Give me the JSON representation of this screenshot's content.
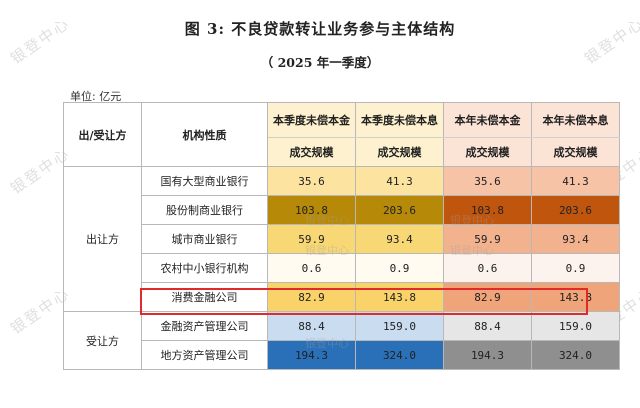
{
  "title": "图 3:  不良贷款转让业务参与主体结构",
  "subtitle": "（ 2025 年一季度）",
  "unit": "单位:  亿元",
  "watermark": "银登中心",
  "table": {
    "header": {
      "party": "出/受让方",
      "institution": "机构性质",
      "cols": [
        "本季度未偿本金",
        "本季度未偿本息",
        "本年未偿本金",
        "本年未偿本息"
      ],
      "sub": "成交规模"
    },
    "groups": [
      {
        "label": "出让方",
        "rows": [
          {
            "name": "国有大型商业银行",
            "values": [
              "35.6",
              "41.3",
              "35.6",
              "41.3"
            ]
          },
          {
            "name": "股份制商业银行",
            "values": [
              "103.8",
              "203.6",
              "103.8",
              "203.6"
            ]
          },
          {
            "name": "城市商业银行",
            "values": [
              "59.9",
              "93.4",
              "59.9",
              "93.4"
            ]
          },
          {
            "name": "农村中小银行机构",
            "values": [
              "0.6",
              "0.9",
              "0.6",
              "0.9"
            ]
          },
          {
            "name": "消费金融公司",
            "values": [
              "82.9",
              "143.8",
              "82.9",
              "143.8"
            ]
          }
        ]
      },
      {
        "label": "受让方",
        "rows": [
          {
            "name": "金融资产管理公司",
            "values": [
              "88.4",
              "159.0",
              "88.4",
              "159.0"
            ]
          },
          {
            "name": "地方资产管理公司",
            "values": [
              "194.3",
              "324.0",
              "194.3",
              "324.0"
            ]
          }
        ]
      }
    ]
  },
  "colors": {
    "header_bg": "#fdf1cf",
    "header_bg_right": "#fbe3d6",
    "col_left": [
      "#fce3a0",
      "#b68a08",
      "#f8d775",
      "#fffbf0",
      "#f9d36a"
    ],
    "col_right": [
      "#f6c3a7",
      "#c0560e",
      "#f3b28e",
      "#fdf3ee",
      "#f0a47a"
    ],
    "receiver_left": [
      "#c9dcf0",
      "#2a70b9"
    ],
    "receiver_right": [
      "#e6e6e6",
      "#8f8f8f"
    ],
    "highlight": "#e02b2b"
  }
}
